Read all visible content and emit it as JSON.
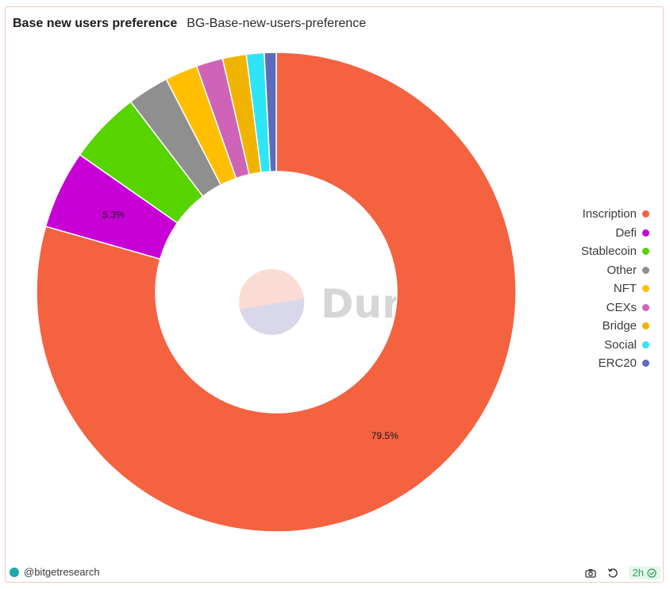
{
  "header": {
    "title": "Base new users preference",
    "subtitle": "BG-Base-new-users-preference"
  },
  "chart_data": {
    "type": "pie",
    "donut": true,
    "legend_position": "right",
    "slices": [
      {
        "label": "Inscription",
        "value": 79.5,
        "color": "#f4623f"
      },
      {
        "label": "Defi",
        "value": 5.3,
        "color": "#c700d6"
      },
      {
        "label": "Stablecoin",
        "value": 4.9,
        "color": "#57d300"
      },
      {
        "label": "Other",
        "value": 2.8,
        "color": "#8f8f8f"
      },
      {
        "label": "NFT",
        "value": 2.2,
        "color": "#ffbf00"
      },
      {
        "label": "CEXs",
        "value": 1.8,
        "color": "#cf63b8"
      },
      {
        "label": "Bridge",
        "value": 1.6,
        "color": "#f0b400"
      },
      {
        "label": "Social",
        "value": 1.2,
        "color": "#2ee5f5"
      },
      {
        "label": "ERC20",
        "value": 0.8,
        "color": "#5f6bb8"
      }
    ],
    "data_labels": [
      "79.5%",
      "5.3%"
    ]
  },
  "watermark": {
    "text": "Dune"
  },
  "footer": {
    "handle": "@bitgetresearch",
    "refresh_badge": "2h",
    "icons": [
      "camera-icon",
      "refresh-icon",
      "check-circle-icon"
    ]
  }
}
